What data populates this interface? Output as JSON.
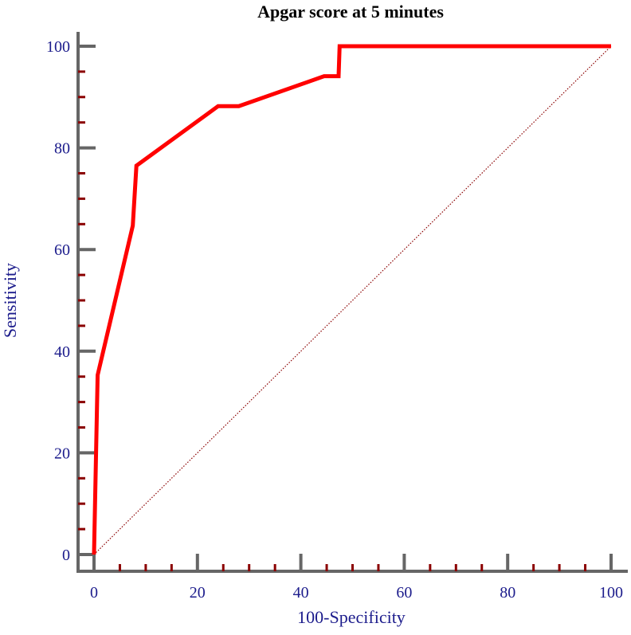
{
  "chart_data": {
    "type": "line",
    "title": "Apgar score at 5 minutes",
    "xlabel": "100-Specificity",
    "ylabel": "Sensitivity",
    "xlim": [
      0,
      100
    ],
    "ylim": [
      0,
      100
    ],
    "x_ticks": [
      "0",
      "20",
      "40",
      "60",
      "80",
      "100"
    ],
    "y_ticks": [
      "0",
      "20",
      "40",
      "60",
      "80",
      "100"
    ],
    "grid": false,
    "legend": "none",
    "series": [
      {
        "color": "#ff0000",
        "x": [
          0,
          0.7,
          7.5,
          8.2,
          24,
          28,
          44.5,
          47.3,
          47.5,
          100
        ],
        "y": [
          0,
          35.3,
          64.7,
          76.5,
          88.2,
          88.2,
          94.1,
          94.1,
          100,
          100
        ]
      }
    ],
    "reference_line": {
      "color": "#8b0000",
      "style": "dotted",
      "x": [
        0,
        100
      ],
      "y": [
        0,
        100
      ]
    }
  },
  "colors": {
    "axis": "#666666",
    "minor_tick": "#8b0000",
    "label_text": "#1c1c8c",
    "title_text": "#000000"
  }
}
